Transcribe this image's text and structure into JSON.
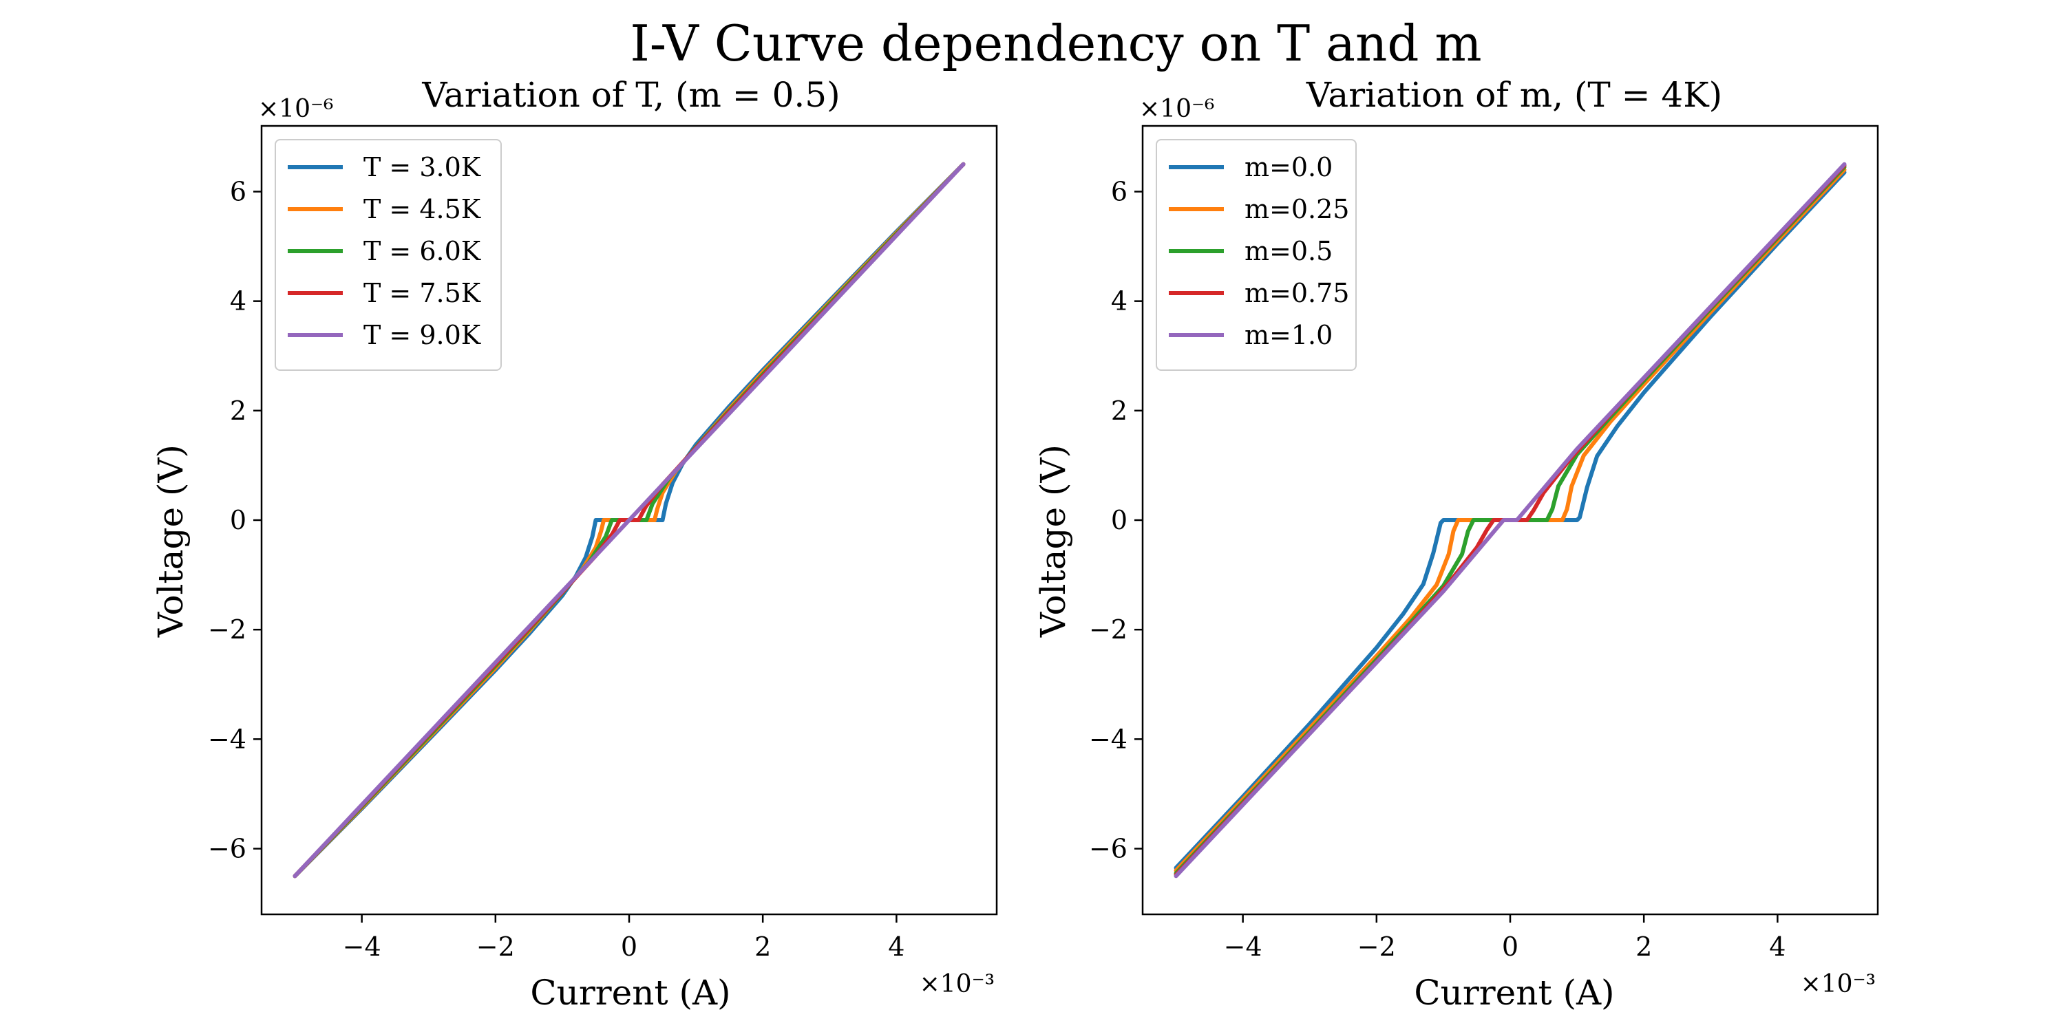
{
  "figure": {
    "suptitle": "I-V Curve dependency on T and m"
  },
  "chart_data": [
    {
      "type": "line",
      "title": "Variation of T, (m = 0.5)",
      "xlabel": "Current (A)",
      "ylabel": "Voltage (V)",
      "x_offset_label": "×10⁻³",
      "y_offset_label": "×10⁻⁶",
      "x_unit_scale": "1e-3",
      "y_unit_scale": "1e-6",
      "xlim": [
        -5.5,
        5.5
      ],
      "ylim": [
        -7.2,
        7.2
      ],
      "xticks": [
        -4,
        -2,
        0,
        2,
        4
      ],
      "yticks": [
        -6,
        -4,
        -2,
        0,
        2,
        4,
        6
      ],
      "xtick_labels": [
        "−4",
        "−2",
        "0",
        "2",
        "4"
      ],
      "ytick_labels": [
        "−6",
        "−4",
        "−2",
        "0",
        "2",
        "4",
        "6"
      ],
      "grid": false,
      "legend_position": "top-left",
      "series": [
        {
          "name": "T = 3.0K",
          "color": "#1f77b4",
          "x": [
            -5,
            -4,
            -3,
            -2,
            -1.5,
            -1.0,
            -0.8,
            -0.65,
            -0.55,
            -0.5,
            0,
            0.5,
            0.55,
            0.65,
            0.8,
            1.0,
            1.5,
            2,
            3,
            4,
            5
          ],
          "y": [
            -6.5,
            -5.27,
            -4.01,
            -2.74,
            -2.08,
            -1.38,
            -1.03,
            -0.68,
            -0.3,
            0,
            0,
            0,
            0.3,
            0.68,
            1.03,
            1.38,
            2.08,
            2.74,
            4.01,
            5.27,
            6.5
          ]
        },
        {
          "name": "T = 4.5K",
          "color": "#ff7f0e",
          "x": [
            -5,
            -4,
            -3,
            -2,
            -1.5,
            -1.0,
            -0.7,
            -0.5,
            -0.42,
            -0.38,
            0,
            0.38,
            0.42,
            0.5,
            0.7,
            1.0,
            1.5,
            2,
            3,
            4,
            5
          ],
          "y": [
            -6.5,
            -5.25,
            -3.98,
            -2.7,
            -2.03,
            -1.33,
            -0.9,
            -0.5,
            -0.2,
            0,
            0,
            0,
            0.2,
            0.5,
            0.9,
            1.33,
            2.03,
            2.7,
            3.98,
            5.25,
            6.5
          ]
        },
        {
          "name": "T = 6.0K",
          "color": "#2ca02c",
          "x": [
            -5,
            -4,
            -3,
            -2,
            -1.5,
            -1.0,
            -0.6,
            -0.35,
            -0.26,
            0,
            0.26,
            0.35,
            0.6,
            1.0,
            1.5,
            2,
            3,
            4,
            5
          ],
          "y": [
            -6.5,
            -5.23,
            -3.95,
            -2.66,
            -2.0,
            -1.33,
            -0.77,
            -0.3,
            0,
            0,
            0,
            0.3,
            0.77,
            1.33,
            2.0,
            2.66,
            3.95,
            5.23,
            6.5
          ]
        },
        {
          "name": "T = 7.5K",
          "color": "#d62728",
          "x": [
            -5,
            -4,
            -3,
            -2,
            -1.5,
            -1.0,
            -0.5,
            -0.25,
            -0.14,
            0,
            0.14,
            0.25,
            0.5,
            1.0,
            1.5,
            2,
            3,
            4,
            5
          ],
          "y": [
            -6.5,
            -5.21,
            -3.92,
            -2.63,
            -1.98,
            -1.32,
            -0.65,
            -0.25,
            0,
            0,
            0,
            0.25,
            0.65,
            1.32,
            1.98,
            2.63,
            3.92,
            5.21,
            6.5
          ]
        },
        {
          "name": "T = 9.0K",
          "color": "#9467bd",
          "x": [
            -5,
            -4,
            -3,
            -2,
            -1,
            0,
            1,
            2,
            3,
            4,
            5
          ],
          "y": [
            -6.5,
            -5.2,
            -3.9,
            -2.6,
            -1.3,
            0,
            1.3,
            2.6,
            3.9,
            5.2,
            6.5
          ]
        }
      ]
    },
    {
      "type": "line",
      "title": "Variation of m, (T = 4K)",
      "xlabel": "Current (A)",
      "ylabel": "Voltage (V)",
      "x_offset_label": "×10⁻³",
      "y_offset_label": "×10⁻⁶",
      "x_unit_scale": "1e-3",
      "y_unit_scale": "1e-6",
      "xlim": [
        -5.5,
        5.5
      ],
      "ylim": [
        -7.2,
        7.2
      ],
      "xticks": [
        -4,
        -2,
        0,
        2,
        4
      ],
      "yticks": [
        -6,
        -4,
        -2,
        0,
        2,
        4,
        6
      ],
      "xtick_labels": [
        "−4",
        "−2",
        "0",
        "2",
        "4"
      ],
      "ytick_labels": [
        "−6",
        "−4",
        "−2",
        "0",
        "2",
        "4",
        "6"
      ],
      "grid": false,
      "legend_position": "top-left",
      "series": [
        {
          "name": "m=0.0",
          "color": "#1f77b4",
          "x": [
            -5,
            -4,
            -3,
            -2,
            -1.6,
            -1.3,
            -1.15,
            -1.08,
            -1.04,
            -1.0,
            1.0,
            1.04,
            1.08,
            1.15,
            1.3,
            1.6,
            2,
            3,
            4,
            5
          ],
          "y": [
            -6.35,
            -5.05,
            -3.72,
            -2.33,
            -1.71,
            -1.17,
            -0.6,
            -0.25,
            -0.05,
            0,
            0,
            0.05,
            0.25,
            0.6,
            1.17,
            1.71,
            2.33,
            3.72,
            5.05,
            6.35
          ]
        },
        {
          "name": "m=0.25",
          "color": "#ff7f0e",
          "x": [
            -5,
            -4,
            -3,
            -2,
            -1.5,
            -1.1,
            -0.92,
            -0.85,
            -0.78,
            0.78,
            0.85,
            0.92,
            1.1,
            1.5,
            2,
            3,
            4,
            5
          ],
          "y": [
            -6.4,
            -5.1,
            -3.8,
            -2.48,
            -1.8,
            -1.18,
            -0.62,
            -0.2,
            0,
            0,
            0.2,
            0.62,
            1.18,
            1.8,
            2.48,
            3.8,
            5.1,
            6.4
          ]
        },
        {
          "name": "m=0.5",
          "color": "#2ca02c",
          "x": [
            -5,
            -4,
            -3,
            -2,
            -1.5,
            -1.0,
            -0.72,
            -0.63,
            -0.55,
            0.55,
            0.63,
            0.72,
            1.0,
            1.5,
            2,
            3,
            4,
            5
          ],
          "y": [
            -6.45,
            -5.15,
            -3.86,
            -2.55,
            -1.88,
            -1.2,
            -0.62,
            -0.2,
            0,
            0,
            0.2,
            0.62,
            1.2,
            1.88,
            2.55,
            3.86,
            5.15,
            6.45
          ]
        },
        {
          "name": "m=0.75",
          "color": "#d62728",
          "x": [
            -5,
            -4,
            -3,
            -2,
            -1.5,
            -0.9,
            -0.5,
            -0.35,
            -0.25,
            0.25,
            0.35,
            0.5,
            0.9,
            1.5,
            2,
            3,
            4,
            5
          ],
          "y": [
            -6.48,
            -5.18,
            -3.89,
            -2.59,
            -1.93,
            -1.12,
            -0.5,
            -0.18,
            0,
            0,
            0.18,
            0.5,
            1.12,
            1.93,
            2.59,
            3.89,
            5.18,
            6.48
          ]
        },
        {
          "name": "m=1.0",
          "color": "#9467bd",
          "x": [
            -5,
            -4,
            -3,
            -2,
            -1,
            -0.1,
            0.1,
            1,
            2,
            3,
            4,
            5
          ],
          "y": [
            -6.5,
            -5.2,
            -3.9,
            -2.6,
            -1.3,
            0,
            0,
            1.3,
            2.6,
            3.9,
            5.2,
            6.5
          ]
        }
      ]
    }
  ]
}
